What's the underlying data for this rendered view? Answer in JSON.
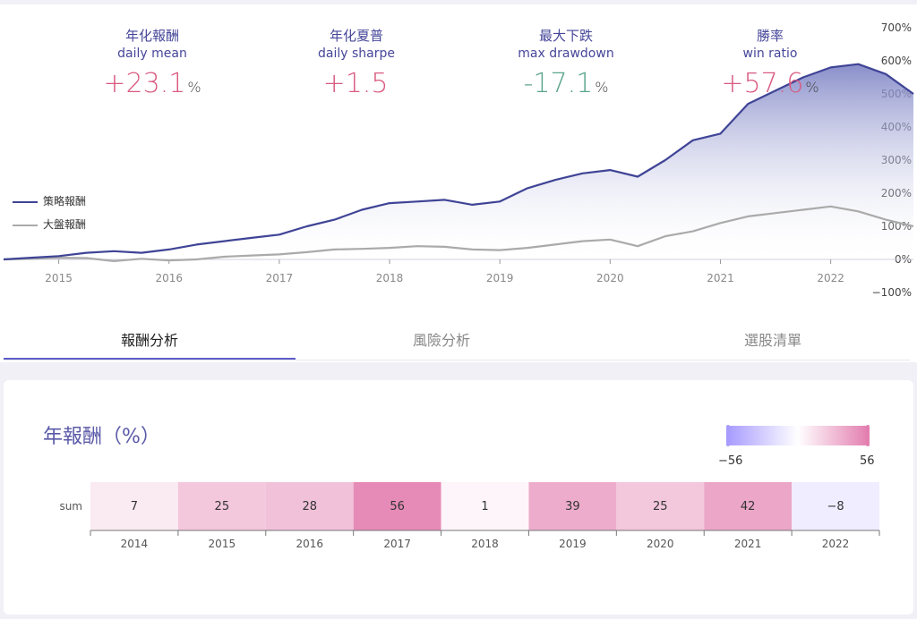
{
  "stats": [
    {
      "zh": "年化報酬",
      "en": "daily mean",
      "value": "+23.1",
      "unit": "%",
      "tone": "pos"
    },
    {
      "zh": "年化夏普",
      "en": "daily sharpe",
      "value": "+1.5",
      "unit": "",
      "tone": "pos"
    },
    {
      "zh": "最大下跌",
      "en": "max drawdown",
      "value": "-17.1",
      "unit": "%",
      "tone": "neg"
    },
    {
      "zh": "勝率",
      "en": "win ratio",
      "value": "+57.6",
      "unit": "%",
      "tone": "pos"
    }
  ],
  "legend": [
    {
      "label": "策略報酬",
      "color": "#3f4496"
    },
    {
      "label": "大盤報酬",
      "color": "#aaaaaa"
    }
  ],
  "tabs": [
    {
      "label": "報酬分析",
      "active": true
    },
    {
      "label": "風險分析",
      "active": false
    },
    {
      "label": "選股清單",
      "active": false
    }
  ],
  "heatmap": {
    "title": "年報酬（%）",
    "row_label": "sum",
    "color_min_label": "−56",
    "color_max_label": "56",
    "color_low": "#a89cff",
    "color_high": "#e37fb0"
  },
  "chart_data": [
    {
      "type": "area",
      "x_ticks": [
        "2015",
        "2016",
        "2017",
        "2018",
        "2019",
        "2020",
        "2021",
        "2022"
      ],
      "y_ticks": [
        "700%",
        "600%",
        "500%",
        "400%",
        "300%",
        "200%",
        "100%",
        "0%",
        "−100%"
      ],
      "ylim": [
        -100,
        700
      ],
      "xlim": [
        2014.5,
        2022.75
      ],
      "legend_position": "left",
      "series": [
        {
          "name": "策略報酬",
          "color": "#3f4496",
          "x": [
            2014.5,
            2014.75,
            2015.0,
            2015.25,
            2015.5,
            2015.75,
            2016.0,
            2016.25,
            2016.5,
            2016.75,
            2017.0,
            2017.25,
            2017.5,
            2017.75,
            2018.0,
            2018.25,
            2018.5,
            2018.75,
            2019.0,
            2019.25,
            2019.5,
            2019.75,
            2020.0,
            2020.25,
            2020.5,
            2020.75,
            2021.0,
            2021.25,
            2021.5,
            2021.75,
            2022.0,
            2022.25,
            2022.5,
            2022.75
          ],
          "y": [
            0,
            5,
            10,
            20,
            25,
            20,
            30,
            45,
            55,
            65,
            75,
            100,
            120,
            150,
            170,
            175,
            180,
            165,
            175,
            215,
            240,
            260,
            270,
            250,
            300,
            360,
            380,
            470,
            510,
            550,
            580,
            590,
            560,
            500
          ]
        },
        {
          "name": "大盤報酬",
          "color": "#aaaaaa",
          "x": [
            2014.5,
            2014.75,
            2015.0,
            2015.25,
            2015.5,
            2015.75,
            2016.0,
            2016.25,
            2016.5,
            2016.75,
            2017.0,
            2017.25,
            2017.5,
            2017.75,
            2018.0,
            2018.25,
            2018.5,
            2018.75,
            2019.0,
            2019.25,
            2019.5,
            2019.75,
            2020.0,
            2020.25,
            2020.5,
            2020.75,
            2021.0,
            2021.25,
            2021.5,
            2021.75,
            2022.0,
            2022.25,
            2022.5,
            2022.75
          ],
          "y": [
            0,
            2,
            5,
            4,
            -5,
            2,
            -3,
            0,
            8,
            12,
            15,
            22,
            30,
            32,
            35,
            40,
            38,
            30,
            28,
            35,
            45,
            55,
            60,
            40,
            70,
            85,
            110,
            130,
            140,
            150,
            160,
            145,
            120,
            100
          ]
        }
      ]
    },
    {
      "type": "heatmap",
      "categories": [
        "2014",
        "2015",
        "2016",
        "2017",
        "2018",
        "2019",
        "2020",
        "2021",
        "2022"
      ],
      "rows": [
        "sum"
      ],
      "values": [
        7,
        25,
        28,
        56,
        1,
        39,
        25,
        42,
        -8
      ],
      "range": [
        -56,
        56
      ]
    }
  ]
}
